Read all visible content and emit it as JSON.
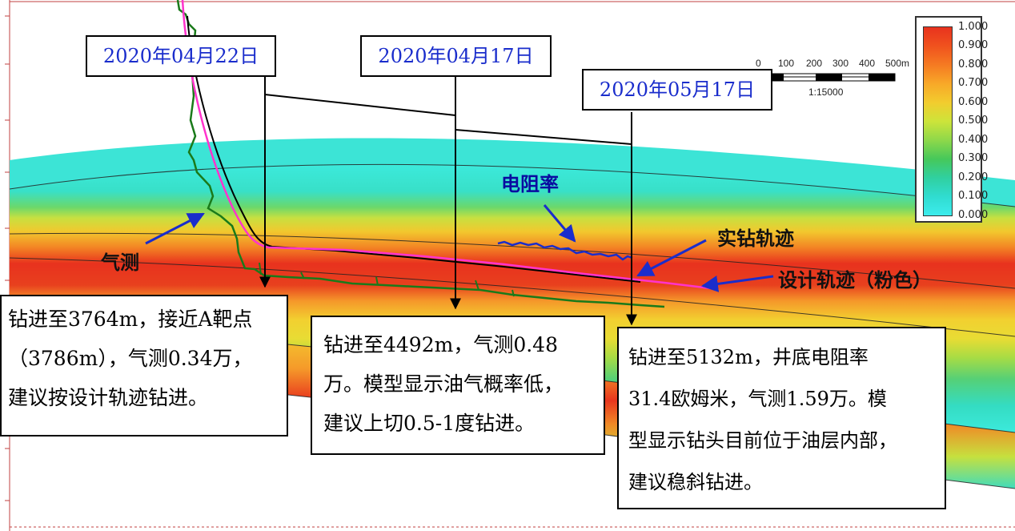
{
  "date_labels": [
    "2020年04月22日",
    "2020年04月17日",
    "2020年05月17日"
  ],
  "notes": [
    {
      "lines": [
        "钻进至3764m，接近A靶点",
        "（3786m），气测0.34万，",
        "建议按设计轨迹钻进。"
      ]
    },
    {
      "lines": [
        "钻进至4492m，气测0.48",
        "万。模型显示油气概率低，",
        "建议上切0.5-1度钻进。"
      ]
    },
    {
      "lines": [
        "钻进至5132m，井底电阻率",
        "31.4欧姆米，气测1.59万。模",
        "型显示钻头目前位于油层内部，",
        "建议稳斜钻进。"
      ]
    }
  ],
  "labels": {
    "resistivity": "电阻率",
    "actual_track": "实钻轨迹",
    "design_track": "设计轨迹（粉色）",
    "gas_log": "气测"
  },
  "legend": {
    "ticks": [
      "1.000",
      "0.900",
      "0.800",
      "0.700",
      "0.600",
      "0.500",
      "0.400",
      "0.300",
      "0.200",
      "0.100",
      "0.000"
    ]
  },
  "scale_bar": {
    "ticks": [
      "0",
      "100",
      "200",
      "300",
      "400",
      "500m"
    ],
    "ratio": "1:15000"
  },
  "colors": {
    "high_probability": "#e8321e",
    "low_probability": "#3cecec",
    "design_track": "#ff33cc",
    "actual_track": "#000000",
    "gas_curve": "#1a7a1a",
    "resistivity_curve": "#1a2dcc",
    "annotation_arrow": "#1a2dcc"
  }
}
